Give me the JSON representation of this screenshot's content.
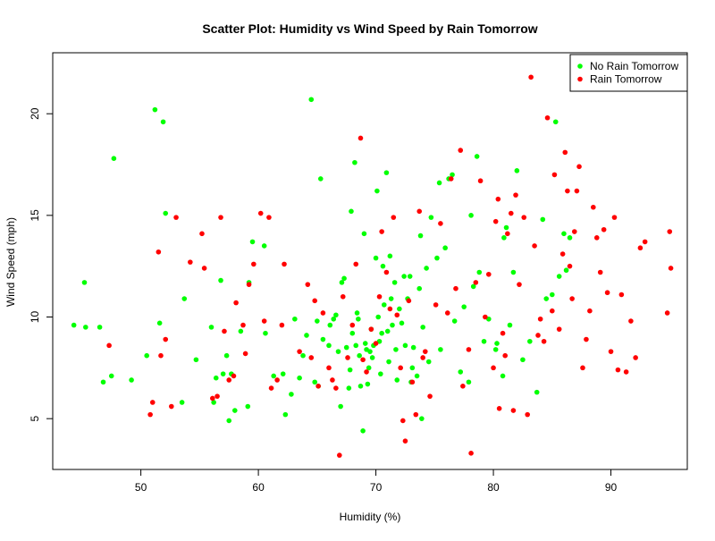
{
  "chart_data": {
    "type": "scatter",
    "title": "Scatter Plot: Humidity vs Wind Speed by Rain Tomorrow",
    "xlabel": "Humidity (%)",
    "ylabel": "Wind Speed (mph)",
    "xlim": [
      42.5,
      96.5
    ],
    "ylim": [
      2.5,
      23
    ],
    "x_ticks": [
      50,
      60,
      70,
      80,
      90
    ],
    "y_ticks": [
      5,
      10,
      15,
      20
    ],
    "grid": false,
    "legend_position": "top-right",
    "series": [
      {
        "name": "No Rain Tomorrow",
        "color": "#00ff00",
        "points": [
          [
            44.3,
            9.6
          ],
          [
            45.2,
            11.7
          ],
          [
            45.3,
            9.5
          ],
          [
            46.5,
            9.5
          ],
          [
            46.8,
            6.8
          ],
          [
            47.5,
            7.1
          ],
          [
            47.7,
            17.8
          ],
          [
            49.2,
            6.9
          ],
          [
            50.5,
            8.1
          ],
          [
            51.2,
            20.2
          ],
          [
            51.6,
            9.7
          ],
          [
            51.9,
            19.6
          ],
          [
            52.1,
            15.1
          ],
          [
            53.5,
            5.8
          ],
          [
            53.7,
            10.9
          ],
          [
            54.7,
            7.9
          ],
          [
            56.0,
            9.5
          ],
          [
            56.2,
            5.8
          ],
          [
            56.4,
            7.0
          ],
          [
            56.8,
            11.8
          ],
          [
            57.0,
            7.2
          ],
          [
            57.3,
            8.1
          ],
          [
            57.5,
            4.9
          ],
          [
            57.7,
            7.2
          ],
          [
            58.0,
            5.4
          ],
          [
            58.5,
            9.3
          ],
          [
            59.1,
            5.6
          ],
          [
            59.2,
            11.7
          ],
          [
            59.5,
            13.7
          ],
          [
            60.5,
            13.5
          ],
          [
            60.6,
            9.2
          ],
          [
            61.3,
            7.1
          ],
          [
            62.1,
            7.2
          ],
          [
            62.3,
            5.2
          ],
          [
            62.8,
            6.2
          ],
          [
            63.1,
            9.9
          ],
          [
            63.5,
            7.0
          ],
          [
            63.8,
            8.1
          ],
          [
            64.1,
            9.1
          ],
          [
            64.5,
            20.7
          ],
          [
            64.8,
            6.8
          ],
          [
            65.0,
            9.8
          ],
          [
            65.1,
            6.6
          ],
          [
            65.3,
            16.8
          ],
          [
            65.5,
            8.9
          ],
          [
            66.0,
            8.6
          ],
          [
            66.1,
            9.6
          ],
          [
            66.4,
            9.9
          ],
          [
            66.6,
            10.1
          ],
          [
            66.8,
            8.3
          ],
          [
            67.0,
            5.6
          ],
          [
            67.1,
            11.7
          ],
          [
            67.3,
            11.9
          ],
          [
            67.5,
            8.5
          ],
          [
            67.7,
            6.5
          ],
          [
            67.8,
            7.4
          ],
          [
            67.9,
            15.2
          ],
          [
            68.0,
            9.2
          ],
          [
            68.2,
            17.6
          ],
          [
            68.3,
            8.6
          ],
          [
            68.4,
            10.2
          ],
          [
            68.5,
            9.9
          ],
          [
            68.6,
            8.1
          ],
          [
            68.7,
            6.6
          ],
          [
            68.9,
            4.4
          ],
          [
            69.0,
            14.1
          ],
          [
            69.1,
            8.7
          ],
          [
            69.2,
            8.4
          ],
          [
            69.3,
            6.7
          ],
          [
            69.4,
            7.5
          ],
          [
            69.5,
            8.3
          ],
          [
            69.6,
            9.4
          ],
          [
            69.7,
            8.0
          ],
          [
            69.8,
            8.6
          ],
          [
            70.0,
            12.9
          ],
          [
            70.1,
            16.2
          ],
          [
            70.2,
            10.0
          ],
          [
            70.3,
            8.8
          ],
          [
            70.4,
            7.2
          ],
          [
            70.5,
            9.2
          ],
          [
            70.6,
            12.5
          ],
          [
            70.7,
            10.6
          ],
          [
            70.9,
            17.1
          ],
          [
            71.0,
            9.3
          ],
          [
            71.1,
            7.8
          ],
          [
            71.2,
            13.0
          ],
          [
            71.3,
            10.9
          ],
          [
            71.4,
            9.6
          ],
          [
            71.6,
            11.7
          ],
          [
            71.7,
            8.4
          ],
          [
            71.8,
            6.9
          ],
          [
            72.0,
            10.4
          ],
          [
            72.2,
            9.7
          ],
          [
            72.4,
            12.0
          ],
          [
            72.5,
            8.6
          ],
          [
            72.7,
            10.9
          ],
          [
            72.9,
            12.0
          ],
          [
            73.0,
            6.8
          ],
          [
            73.1,
            7.5
          ],
          [
            73.2,
            8.5
          ],
          [
            73.5,
            7.1
          ],
          [
            73.7,
            11.4
          ],
          [
            73.8,
            14.0
          ],
          [
            73.9,
            5.0
          ],
          [
            74.0,
            9.5
          ],
          [
            74.3,
            12.4
          ],
          [
            74.5,
            7.8
          ],
          [
            74.7,
            14.9
          ],
          [
            75.2,
            12.9
          ],
          [
            75.4,
            16.6
          ],
          [
            75.5,
            8.4
          ],
          [
            75.9,
            13.4
          ],
          [
            76.2,
            16.8
          ],
          [
            76.5,
            17.0
          ],
          [
            76.7,
            9.8
          ],
          [
            77.2,
            7.3
          ],
          [
            77.5,
            10.5
          ],
          [
            77.9,
            6.8
          ],
          [
            78.1,
            15.0
          ],
          [
            78.3,
            11.5
          ],
          [
            78.6,
            17.9
          ],
          [
            78.8,
            12.2
          ],
          [
            79.2,
            8.8
          ],
          [
            79.6,
            9.9
          ],
          [
            80.2,
            8.4
          ],
          [
            80.3,
            8.7
          ],
          [
            80.8,
            7.1
          ],
          [
            80.9,
            13.9
          ],
          [
            81.1,
            14.4
          ],
          [
            81.4,
            9.6
          ],
          [
            81.7,
            12.2
          ],
          [
            82.0,
            17.2
          ],
          [
            82.5,
            7.9
          ],
          [
            83.1,
            8.8
          ],
          [
            83.7,
            6.3
          ],
          [
            84.2,
            14.8
          ],
          [
            84.5,
            10.9
          ],
          [
            85.0,
            11.1
          ],
          [
            85.3,
            19.6
          ],
          [
            85.6,
            12.0
          ],
          [
            86.0,
            14.1
          ],
          [
            86.2,
            12.3
          ],
          [
            86.5,
            13.9
          ]
        ]
      },
      {
        "name": "Rain Tomorrow",
        "color": "#ff0000",
        "points": [
          [
            47.3,
            8.6
          ],
          [
            50.8,
            5.2
          ],
          [
            51.0,
            5.8
          ],
          [
            51.5,
            13.2
          ],
          [
            51.7,
            8.1
          ],
          [
            52.1,
            8.9
          ],
          [
            52.6,
            5.6
          ],
          [
            53.0,
            14.9
          ],
          [
            54.2,
            12.7
          ],
          [
            55.2,
            14.1
          ],
          [
            55.4,
            12.4
          ],
          [
            56.1,
            6.0
          ],
          [
            56.5,
            6.1
          ],
          [
            56.8,
            14.9
          ],
          [
            57.1,
            9.3
          ],
          [
            57.5,
            6.9
          ],
          [
            57.9,
            7.1
          ],
          [
            58.1,
            10.7
          ],
          [
            58.7,
            9.6
          ],
          [
            58.9,
            8.2
          ],
          [
            59.2,
            11.6
          ],
          [
            59.6,
            12.6
          ],
          [
            60.2,
            15.1
          ],
          [
            60.5,
            9.8
          ],
          [
            60.9,
            14.9
          ],
          [
            61.1,
            6.5
          ],
          [
            61.6,
            6.9
          ],
          [
            62.0,
            9.6
          ],
          [
            62.2,
            12.6
          ],
          [
            63.5,
            8.3
          ],
          [
            64.2,
            11.6
          ],
          [
            64.5,
            8.0
          ],
          [
            64.8,
            10.8
          ],
          [
            65.1,
            6.6
          ],
          [
            65.5,
            10.2
          ],
          [
            66.0,
            7.5
          ],
          [
            66.3,
            6.9
          ],
          [
            66.6,
            6.5
          ],
          [
            66.9,
            3.2
          ],
          [
            67.2,
            11.0
          ],
          [
            67.6,
            8.0
          ],
          [
            68.0,
            9.6
          ],
          [
            68.3,
            12.6
          ],
          [
            68.7,
            18.8
          ],
          [
            68.9,
            7.9
          ],
          [
            69.2,
            7.3
          ],
          [
            69.6,
            9.4
          ],
          [
            70.0,
            8.7
          ],
          [
            70.3,
            11.0
          ],
          [
            70.5,
            14.2
          ],
          [
            70.9,
            12.2
          ],
          [
            71.2,
            10.4
          ],
          [
            71.5,
            14.9
          ],
          [
            71.8,
            10.1
          ],
          [
            72.1,
            7.5
          ],
          [
            72.3,
            4.9
          ],
          [
            72.5,
            3.9
          ],
          [
            72.8,
            10.8
          ],
          [
            73.1,
            6.8
          ],
          [
            73.4,
            5.2
          ],
          [
            73.7,
            15.2
          ],
          [
            74.0,
            8.0
          ],
          [
            74.2,
            8.3
          ],
          [
            74.6,
            6.1
          ],
          [
            75.1,
            10.6
          ],
          [
            75.5,
            14.6
          ],
          [
            76.1,
            10.2
          ],
          [
            76.4,
            16.8
          ],
          [
            76.8,
            11.4
          ],
          [
            77.2,
            18.2
          ],
          [
            77.4,
            6.6
          ],
          [
            77.9,
            8.4
          ],
          [
            78.1,
            3.3
          ],
          [
            78.5,
            11.7
          ],
          [
            78.9,
            16.7
          ],
          [
            79.3,
            10.0
          ],
          [
            79.6,
            12.1
          ],
          [
            80.0,
            7.5
          ],
          [
            80.2,
            14.7
          ],
          [
            80.4,
            15.8
          ],
          [
            80.5,
            5.5
          ],
          [
            80.8,
            9.2
          ],
          [
            81.0,
            8.1
          ],
          [
            81.2,
            14.1
          ],
          [
            81.5,
            15.1
          ],
          [
            81.7,
            5.4
          ],
          [
            81.9,
            16.0
          ],
          [
            82.2,
            11.6
          ],
          [
            82.6,
            14.9
          ],
          [
            82.9,
            5.2
          ],
          [
            83.2,
            21.8
          ],
          [
            83.5,
            13.5
          ],
          [
            83.8,
            9.1
          ],
          [
            84.0,
            9.9
          ],
          [
            84.3,
            8.8
          ],
          [
            84.6,
            19.8
          ],
          [
            85.0,
            10.3
          ],
          [
            85.2,
            17.0
          ],
          [
            85.6,
            9.4
          ],
          [
            85.9,
            13.1
          ],
          [
            86.1,
            18.1
          ],
          [
            86.3,
            16.2
          ],
          [
            86.5,
            12.5
          ],
          [
            86.7,
            10.9
          ],
          [
            86.9,
            14.2
          ],
          [
            87.1,
            16.2
          ],
          [
            87.3,
            17.4
          ],
          [
            87.6,
            7.5
          ],
          [
            87.9,
            8.9
          ],
          [
            88.2,
            10.3
          ],
          [
            88.5,
            15.4
          ],
          [
            88.8,
            13.9
          ],
          [
            89.1,
            12.2
          ],
          [
            89.4,
            14.3
          ],
          [
            89.7,
            11.2
          ],
          [
            90.0,
            8.3
          ],
          [
            90.3,
            14.9
          ],
          [
            90.6,
            7.4
          ],
          [
            90.9,
            11.1
          ],
          [
            91.3,
            7.3
          ],
          [
            91.7,
            9.8
          ],
          [
            92.1,
            8.0
          ],
          [
            92.5,
            13.4
          ],
          [
            92.9,
            13.7
          ],
          [
            94.8,
            10.2
          ],
          [
            95.0,
            14.2
          ],
          [
            95.1,
            12.4
          ]
        ]
      }
    ]
  }
}
